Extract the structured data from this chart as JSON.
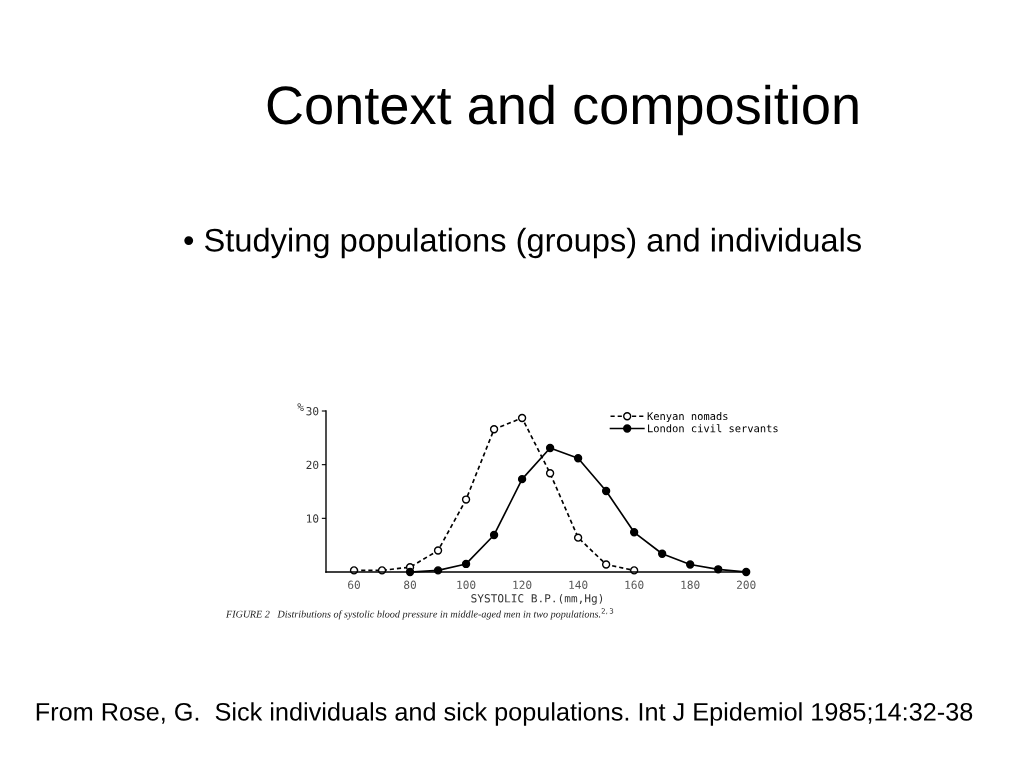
{
  "chart_data": {
    "type": "line",
    "title": "Context and composition",
    "subtitle": "• Studying populations (groups) and individuals",
    "xlabel": "SYSTOLIC B.P.(mm,Hg)",
    "ylabel": "%",
    "xlim": [
      50,
      201
    ],
    "xticks": [
      60,
      80,
      100,
      120,
      140,
      160,
      180,
      200
    ],
    "ylim": [
      0,
      30
    ],
    "yticks": [
      10,
      20,
      30
    ],
    "legend": "top right",
    "marker": "circle",
    "series": [
      {
        "name": "Kenyan nomads",
        "color": "#000000",
        "line_style": "dashed",
        "x": [
          60,
          70,
          80,
          90,
          100,
          110,
          120,
          130,
          140,
          150,
          160
        ],
        "values": [
          0.3,
          0.3,
          0.9,
          4.0,
          13.5,
          26.6,
          28.7,
          18.4,
          6.4,
          1.4,
          0.3
        ]
      },
      {
        "name": "London civil servants",
        "color": "#000000",
        "line_style": "solid",
        "x": [
          80,
          90,
          100,
          110,
          120,
          130,
          140,
          150,
          160,
          170,
          180,
          190,
          200
        ],
        "values": [
          0,
          0.3,
          1.5,
          6.9,
          17.3,
          23.1,
          21.2,
          15.1,
          7.4,
          3.4,
          1.4,
          0.5,
          0
        ]
      }
    ],
    "annotations": [
      "FIGURE 2   Distributions of systolic blood pressure in middle-aged men in two populations.$^{2,3}$",
      "From Rose, G.  Sick individuals and sick populations. Int J Epidemiol 1985;14:32-38"
    ]
  }
}
